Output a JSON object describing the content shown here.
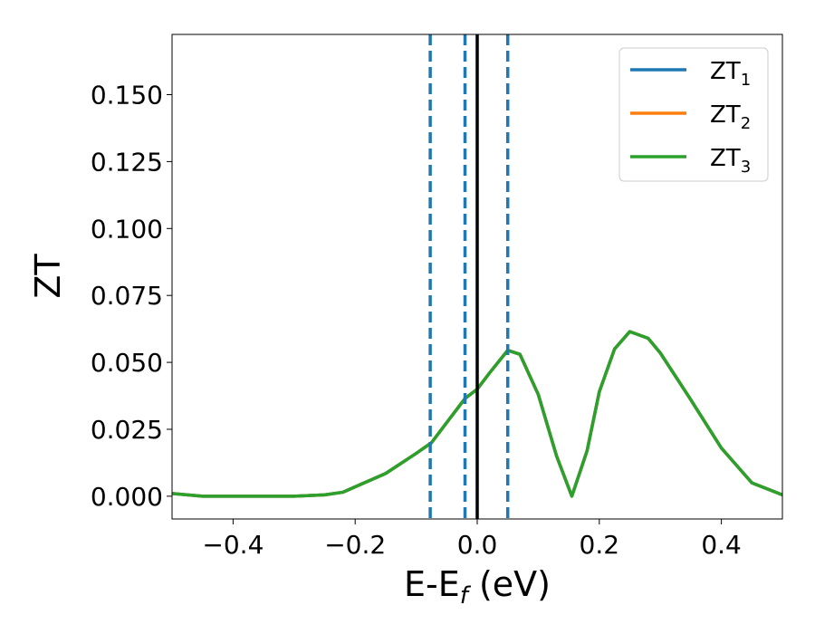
{
  "chart_data": {
    "type": "line",
    "title": "",
    "xlabel": "E-E",
    "xlabel_sub": "f",
    "xlabel_unit": " (eV)",
    "ylabel": "ZT",
    "xlim": [
      -0.5,
      0.5
    ],
    "ylim": [
      -0.0085,
      0.1725
    ],
    "xticks": [
      -0.4,
      -0.2,
      0.0,
      0.2,
      0.4
    ],
    "xtick_labels": [
      "−0.4",
      "−0.2",
      "0.0",
      "0.2",
      "0.4"
    ],
    "yticks": [
      0.0,
      0.025,
      0.05,
      0.075,
      0.1,
      0.125,
      0.15
    ],
    "ytick_labels": [
      "0.000",
      "0.025",
      "0.050",
      "0.075",
      "0.100",
      "0.125",
      "0.150"
    ],
    "grid": false,
    "legend_placement": "top-right",
    "series": [
      {
        "name": "ZT",
        "name_sub": "1",
        "color": "#1f77b4",
        "x": [
          -0.5,
          -0.45,
          -0.4,
          -0.35,
          -0.3,
          -0.25,
          -0.22,
          -0.2,
          -0.15,
          -0.1,
          -0.075,
          -0.05,
          -0.02,
          0.0,
          0.02,
          0.05,
          0.07,
          0.1,
          0.13,
          0.155,
          0.18,
          0.2,
          0.225,
          0.25,
          0.28,
          0.3,
          0.35,
          0.4,
          0.45,
          0.5
        ],
        "y": [
          0.001,
          0.0,
          0.0,
          0.0,
          0.0,
          0.0005,
          0.0015,
          0.0035,
          0.0085,
          0.016,
          0.02,
          0.0275,
          0.0365,
          0.04,
          0.046,
          0.0545,
          0.053,
          0.038,
          0.015,
          0.0,
          0.017,
          0.039,
          0.055,
          0.0615,
          0.059,
          0.0535,
          0.036,
          0.018,
          0.005,
          0.0005
        ]
      },
      {
        "name": "ZT",
        "name_sub": "2",
        "color": "#ff7f0e",
        "x": [
          -0.5,
          -0.45,
          -0.4,
          -0.35,
          -0.3,
          -0.25,
          -0.22,
          -0.2,
          -0.15,
          -0.1,
          -0.075,
          -0.05,
          -0.02,
          0.0,
          0.02,
          0.05,
          0.07,
          0.1,
          0.13,
          0.155,
          0.18,
          0.2,
          0.225,
          0.25,
          0.28,
          0.3,
          0.35,
          0.4,
          0.45,
          0.5
        ],
        "y": [
          0.001,
          0.0,
          0.0,
          0.0,
          0.0,
          0.0005,
          0.0015,
          0.0035,
          0.0085,
          0.016,
          0.02,
          0.0275,
          0.0365,
          0.04,
          0.046,
          0.0545,
          0.053,
          0.038,
          0.015,
          0.0,
          0.017,
          0.039,
          0.055,
          0.0615,
          0.059,
          0.0535,
          0.036,
          0.018,
          0.005,
          0.0005
        ]
      },
      {
        "name": "ZT",
        "name_sub": "3",
        "color": "#2ca02c",
        "x": [
          -0.5,
          -0.45,
          -0.4,
          -0.35,
          -0.3,
          -0.25,
          -0.22,
          -0.2,
          -0.15,
          -0.1,
          -0.075,
          -0.05,
          -0.02,
          0.0,
          0.02,
          0.05,
          0.07,
          0.1,
          0.13,
          0.155,
          0.18,
          0.2,
          0.225,
          0.25,
          0.28,
          0.3,
          0.35,
          0.4,
          0.45,
          0.5
        ],
        "y": [
          0.001,
          0.0,
          0.0,
          0.0,
          0.0,
          0.0005,
          0.0015,
          0.0035,
          0.0085,
          0.016,
          0.02,
          0.0275,
          0.0365,
          0.04,
          0.046,
          0.0545,
          0.053,
          0.038,
          0.015,
          0.0,
          0.017,
          0.039,
          0.055,
          0.0615,
          0.059,
          0.0535,
          0.036,
          0.018,
          0.005,
          0.0005
        ]
      }
    ],
    "vertical_lines": [
      {
        "x": -0.077,
        "style": "dashed",
        "color": "#1f77b4"
      },
      {
        "x": -0.02,
        "style": "dashed",
        "color": "#1f77b4"
      },
      {
        "x": 0.0,
        "style": "solid",
        "color": "#000000"
      },
      {
        "x": 0.05,
        "style": "dashed",
        "color": "#1f77b4"
      }
    ]
  }
}
